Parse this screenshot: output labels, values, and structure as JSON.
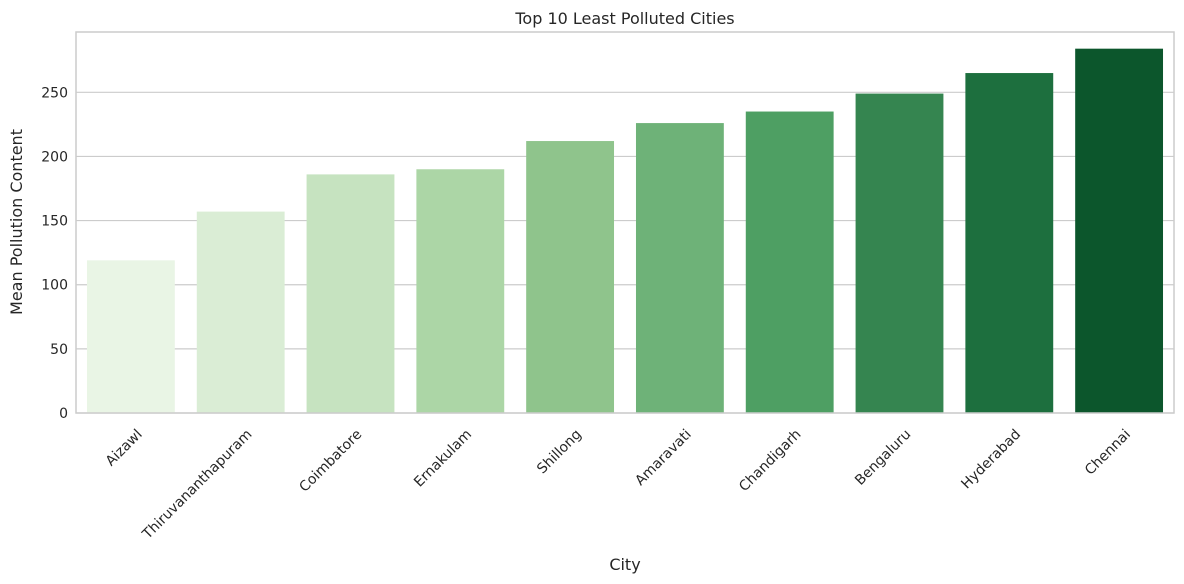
{
  "chart_data": {
    "type": "bar",
    "title": "Top 10 Least Polluted Cities",
    "xlabel": "City",
    "ylabel": "Mean Pollution Content",
    "categories": [
      "Aizawl",
      "Thiruvananthapuram",
      "Coimbatore",
      "Ernakulam",
      "Shillong",
      "Amaravati",
      "Chandigarh",
      "Bengaluru",
      "Hyderabad",
      "Chennai"
    ],
    "values": [
      119,
      157,
      186,
      190,
      212,
      226,
      235,
      249,
      265,
      284
    ],
    "ylim": [
      0,
      297
    ],
    "yticks": [
      0,
      50,
      100,
      150,
      200,
      250
    ],
    "colors": [
      "#e9f5e5",
      "#daedd5",
      "#c6e3c0",
      "#acd6a6",
      "#8fc48c",
      "#6eb278",
      "#4e9f63",
      "#358550",
      "#1d6f3e",
      "#0c562c"
    ],
    "grid": "horizontal",
    "legend": "none"
  }
}
